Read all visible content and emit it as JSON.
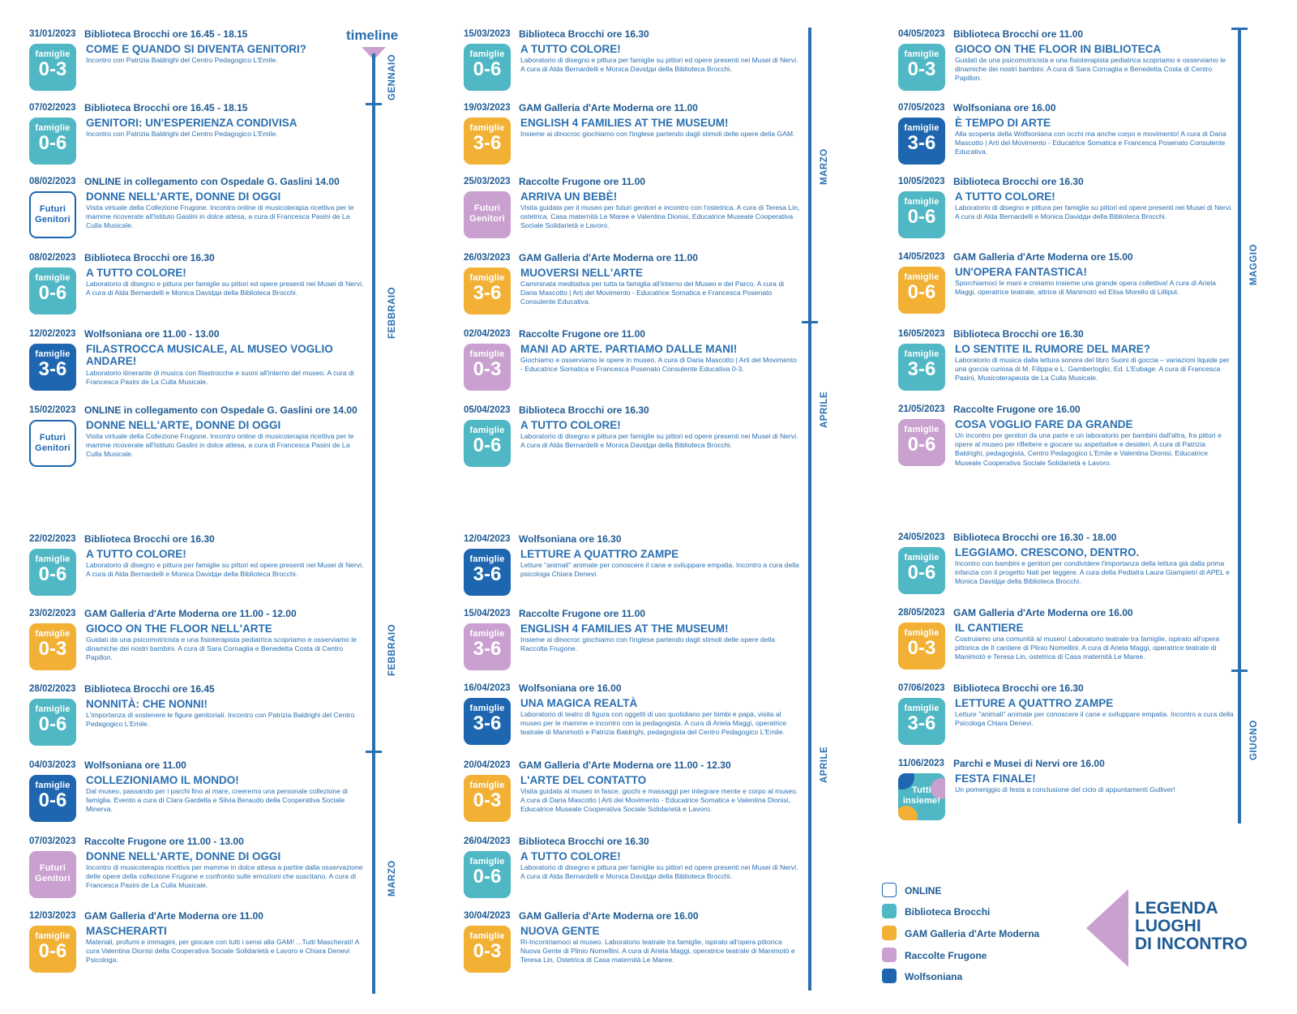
{
  "colors": {
    "biblioteca": "#4fb8c4",
    "gam": "#f2b135",
    "frugone": "#c9a0cf",
    "wolfsoniana": "#1e67b0",
    "online": "#ffffff",
    "text": "#2a6fb0"
  },
  "timeline_label": "timeline",
  "columns": [
    {
      "events": [
        {
          "date": "31/01/2023",
          "venue": "Biblioteca Brocchi ore 16.45 - 18.15",
          "title": "COME E QUANDO SI DIVENTA GENITORI?",
          "desc": "Incontro con Patrizia Baldrighi del Centro Pedagogico L'Emile.",
          "badge": {
            "type": "biblioteca",
            "line1": "famiglie",
            "line2": "0-3"
          }
        },
        {
          "date": "07/02/2023",
          "venue": "Biblioteca Brocchi ore 16.45 - 18.15",
          "title": "GENITORI: UN'ESPERIENZA CONDIVISA",
          "desc": "Incontro con Patrizia Baldrighi del Centro Pedagogico L'Emile.",
          "badge": {
            "type": "biblioteca",
            "line1": "famiglie",
            "line2": "0-6"
          }
        },
        {
          "date": "08/02/2023",
          "venue": "ONLINE in collegamento con Ospedale G. Gaslini 14.00",
          "title": "DONNE NELL'ARTE, DONNE DI OGGI",
          "desc": "Visita virtuale della Collezione Frugone. Incontro online di musicoterapia ricettiva per le mamme ricoverate all'Istituto Gaslini in dolce attesa, a cura di Francesca Pasini de La Culla Musicale.",
          "badge": {
            "type": "online",
            "line1": "Futuri Genitori",
            "line2": ""
          }
        },
        {
          "date": "08/02/2023",
          "venue": "Biblioteca Brocchi ore 16.30",
          "title": "A TUTTO COLORE!",
          "desc": "Laboratorio di disegno e pittura per famiglie su pittori ed opere presenti nei Musei di Nervi. A cura di Alda Bernardelli e Monica Davidди della Biblioteca Brocchi.",
          "badge": {
            "type": "biblioteca",
            "line1": "famiglie",
            "line2": "0-6"
          }
        },
        {
          "date": "12/02/2023",
          "venue": "Wolfsoniana ore 11.00 - 13.00",
          "title": "FILASTROCCA MUSICALE, AL MUSEO VOGLIO ANDARE!",
          "desc": "Laboratorio itinerante di musica con filastrocche e suoni all'interno del museo. A cura di Francesca Pasini de La Culla Musicale.",
          "badge": {
            "type": "wolfsoniana",
            "line1": "famiglie",
            "line2": "3-6"
          }
        },
        {
          "date": "15/02/2023",
          "venue": "ONLINE in collegamento con Ospedale G. Gaslini ore 14.00",
          "title": "DONNE NELL'ARTE, DONNE DI OGGI",
          "desc": "Visita virtuale della Collezione Frugone. Incontro online di musicoterapia ricettiva per le mamme ricoverate all'Istituto Gaslini in dolce attesa, a cura di Francesca Pasini de La Culla Musicale.",
          "badge": {
            "type": "online",
            "line1": "Futuri Genitori",
            "line2": ""
          }
        },
        {
          "date": "22/02/2023",
          "venue": "Biblioteca Brocchi ore 16.30",
          "title": "A TUTTO COLORE!",
          "desc": "Laboratorio di disegno e pittura per famiglie su pittori ed opere presenti nei Musei di Nervi. A cura di Alda Bernardelli e Monica Davidди della Biblioteca Brocchi.",
          "badge": {
            "type": "biblioteca",
            "line1": "famiglie",
            "line2": "0-6"
          }
        },
        {
          "date": "23/02/2023",
          "venue": "GAM Galleria d'Arte Moderna ore 11.00 - 12.00",
          "title": "GIOCO ON THE FLOOR NELL'ARTE",
          "desc": "Guidati da una psicomotricista e una fisioterapista pediatrica scopriamo e osserviamo le dinamiche dei nostri bambini. A cura di Sara Cornaglia e Benedetta Costa di Centro Papillon.",
          "badge": {
            "type": "gam",
            "line1": "famiglie",
            "line2": "0-3"
          }
        },
        {
          "date": "28/02/2023",
          "venue": "Biblioteca Brocchi ore 16.45",
          "title": "NONNITÀ: CHE NONNI!",
          "desc": "L'importanza di sostenere le figure genitoriali. Incontro con Patrizia Baldrighi del Centro Pedagogico L'Emile.",
          "badge": {
            "type": "biblioteca",
            "line1": "famiglie",
            "line2": "0-6"
          }
        },
        {
          "date": "04/03/2023",
          "venue": "Wolfsoniana ore 11.00",
          "title": "COLLEZIONIAMO IL MONDO!",
          "desc": "Dal museo, passando per i parchi fino al mare, creeremo una personale collezione di famiglia. Evento a cura di Clara Gardella e Silvia Beraudo della Cooperativa Sociale Minerva.",
          "badge": {
            "type": "wolfsoniana",
            "line1": "famiglie",
            "line2": "0-6"
          }
        },
        {
          "date": "07/03/2023",
          "venue": "Raccolte Frugone ore 11.00 - 13.00",
          "title": "DONNE NELL'ARTE, DONNE DI OGGI",
          "desc": "Incontro di musicoterapia ricettiva per mamme in dolce attesa a partire dalla osservazione delle opere della collezione Frugone e confronto sulle emozioni che suscitano. A cura di Francesca Pasini de La Culla Musicale.",
          "badge": {
            "type": "frugone",
            "line1": "Futuri Genitori",
            "line2": ""
          }
        },
        {
          "date": "12/03/2023",
          "venue": "GAM Galleria d'Arte Moderna ore 11.00",
          "title": "MASCHERARTI",
          "desc": "Materiali, profumi e immagini, per giocare con tutti i sensi alla GAM! ...Tutti Mascherati! A cura Valentina Dionisi della Cooperativa Sociale Solidarietà e Lavoro e Chiara Denevi Psicologa.",
          "badge": {
            "type": "gam",
            "line1": "famiglie",
            "line2": "0-6"
          }
        }
      ],
      "months": [
        "GENNAIO",
        "FEBBRAIO",
        "FEBBRAIO",
        "MARZO"
      ]
    },
    {
      "events": [
        {
          "date": "15/03/2023",
          "venue": "Biblioteca Brocchi ore 16.30",
          "title": "A TUTTO COLORE!",
          "desc": "Laboratorio di disegno e pittura per famiglie su pittori ed opere presenti nei Musei di Nervi. A cura di Alda Bernardelli e Monica Davidди della Biblioteca Brocchi.",
          "badge": {
            "type": "biblioteca",
            "line1": "famiglie",
            "line2": "0-6"
          }
        },
        {
          "date": "19/03/2023",
          "venue": "GAM Galleria d'Arte Moderna ore 11.00",
          "title": "ENGLISH 4 FAMILIES AT THE MUSEUM!",
          "desc": "Insieme ai dinocroc giochiamo con l'inglese partendo dagli stimoli delle opere della GAM.",
          "badge": {
            "type": "gam",
            "line1": "famiglie",
            "line2": "3-6"
          }
        },
        {
          "date": "25/03/2023",
          "venue": "Raccolte Frugone ore 11.00",
          "title": "ARRIVA UN BEBÈ!",
          "desc": "Visita guidata per il museo per futuri genitori e incontro con l'ostetrica. A cura di Teresa Lin, ostetrica, Casa maternità Le Maree e Valentina Dionisi, Educatrice Museale Cooperativa Sociale Solidarietà e Lavoro.",
          "badge": {
            "type": "frugone",
            "line1": "Futuri Genitori",
            "line2": ""
          }
        },
        {
          "date": "26/03/2023",
          "venue": "GAM Galleria d'Arte Moderna ore 11.00",
          "title": "MUOVERSI NELL'ARTE",
          "desc": "Camminata meditativa per tutta la famiglia all'interno del Museo e del Parco. A cura di Daria Mascotto | Arti del Movimento - Educatrice Somatica e Francesca Posenato Consulente Educativa.",
          "badge": {
            "type": "gam",
            "line1": "famiglie",
            "line2": "3-6"
          }
        },
        {
          "date": "02/04/2023",
          "venue": "Raccolte Frugone ore 11.00",
          "title": "MANI AD ARTE. PARTIAMO DALLE MANI!",
          "desc": "Giochiamo e osserviamo le opere in museo. A cura di Daria Mascotto | Arti del Movimento - Educatrice Somatica e Francesca Posenato Consulente Educativa 0-3.",
          "badge": {
            "type": "frugone",
            "line1": "famiglie",
            "line2": "0-3"
          }
        },
        {
          "date": "05/04/2023",
          "venue": "Biblioteca Brocchi ore 16.30",
          "title": "A TUTTO COLORE!",
          "desc": "Laboratorio di disegno e pittura per famiglie su pittori ed opere presenti nei Musei di Nervi. A cura di Alda Bernardelli e Monica Davidди della Biblioteca Brocchi.",
          "badge": {
            "type": "biblioteca",
            "line1": "famiglie",
            "line2": "0-6"
          }
        },
        {
          "date": "12/04/2023",
          "venue": "Wolfsoniana ore 16.30",
          "title": "LETTURE A QUATTRO ZAMPE",
          "desc": "Letture \"animali\" animate per conoscere il cane e sviluppare empatia. Incontro a cura della psicologa Chiara Denevi.",
          "badge": {
            "type": "wolfsoniana",
            "line1": "famiglie",
            "line2": "3-6"
          }
        },
        {
          "date": "15/04/2023",
          "venue": "Raccolte Frugone ore 11.00",
          "title": "ENGLISH 4 FAMILIES AT THE MUSEUM!",
          "desc": "Insieme ai dinocroc giochiamo con l'inglese partendo dagli stimoli delle opere della Raccolta Frugone.",
          "badge": {
            "type": "frugone",
            "line1": "famiglie",
            "line2": "3-6"
          }
        },
        {
          "date": "16/04/2023",
          "venue": "Wolfsoniana ore 16.00",
          "title": "UNA MAGICA REALTÀ",
          "desc": "Laboratorio di teatro di figura con oggetti di uso quotidiano per bimbi e papà, visita al museo per le mamme e incontro con la pedagogista. A cura di Ariela Maggi, operatrice teatrale di Manimotò e Patrizia Baldrighi, pedagogista del Centro Pedagogico L'Emile.",
          "badge": {
            "type": "wolfsoniana",
            "line1": "famiglie",
            "line2": "3-6"
          }
        },
        {
          "date": "20/04/2023",
          "venue": "GAM Galleria d'Arte Moderna ore 11.00 - 12.30",
          "title": "L'ARTE DEL CONTATTO",
          "desc": "Visita guidata al museo in fasce, giochi e massaggi per integrare mente e corpo al museo. A cura di Daria Mascotto | Arti del Movimento - Educatrice Somatica e Valentina Dionisi, Educatrice Museale Cooperativa Sociale Solidarietà e Lavoro.",
          "badge": {
            "type": "gam",
            "line1": "famiglie",
            "line2": "0-3"
          }
        },
        {
          "date": "26/04/2023",
          "venue": "Biblioteca Brocchi ore 16.30",
          "title": "A TUTTO COLORE!",
          "desc": "Laboratorio di disegno e pittura per famiglie su pittori ed opere presenti nei Musei di Nervi. A cura di Alda Bernardelli e Monica Davidди della Biblioteca Brocchi.",
          "badge": {
            "type": "biblioteca",
            "line1": "famiglie",
            "line2": "0-6"
          }
        },
        {
          "date": "30/04/2023",
          "venue": "GAM Galleria d'Arte Moderna ore 16.00",
          "title": "NUOVA GENTE",
          "desc": "Ri-Incontriamoci al museo. Laboratorio teatrale tra famiglie, ispirato all'opera pittorica Nuova Gente di Plinio Nomellini. A cura di Ariela Maggi, operatrice teatrale di Manimotò e Teresa Lin, Ostetrica di Casa maternità Le Maree.",
          "badge": {
            "type": "gam",
            "line1": "famiglie",
            "line2": "0-3"
          }
        }
      ],
      "months": [
        "MARZO",
        "APRILE",
        "APRILE"
      ]
    },
    {
      "events": [
        {
          "date": "04/05/2023",
          "venue": "Biblioteca Brocchi ore 11.00",
          "title": "GIOCO ON THE FLOOR IN BIBLIOTECA",
          "desc": "Guidati da una psicomotricista e una fisioterapista pediatrica scopriamo e osserviamo le dinamiche dei nostri bambini. A cura di Sara Cornaglia e Benedetta Costa di Centro Papillon.",
          "badge": {
            "type": "biblioteca",
            "line1": "famiglie",
            "line2": "0-3"
          }
        },
        {
          "date": "07/05/2023",
          "venue": "Wolfsoniana ore 16.00",
          "title": "È TEMPO DI ARTE",
          "desc": "Alla scoperta della Wolfsoniana con occhi ma anche corpo e movimento! A cura di Daria Mascotto | Arti del Movimento - Educatrice Somatica e Francesca Posenato Consulente Educativa.",
          "badge": {
            "type": "wolfsoniana",
            "line1": "famiglie",
            "line2": "3-6"
          }
        },
        {
          "date": "10/05/2023",
          "venue": "Biblioteca Brocchi ore 16.30",
          "title": "A TUTTO COLORE!",
          "desc": "Laboratorio di disegno e pittura per famiglie su pittori ed opere presenti nei Musei di Nervi. A cura di Alda Bernardelli e Monica Davidди della Biblioteca Brocchi.",
          "badge": {
            "type": "biblioteca",
            "line1": "famiglie",
            "line2": "0-6"
          }
        },
        {
          "date": "14/05/2023",
          "venue": "GAM Galleria d'Arte Moderna ore 15.00",
          "title": "UN'OPERA FANTASTICA!",
          "desc": "Sporchiamoci le mani e creiamo insieme una grande opera collettiva! A cura di Ariela Maggi, operatrice teatrale, attrice di Manimotò ed Elisa Morello di Lilliput.",
          "badge": {
            "type": "gam",
            "line1": "famiglie",
            "line2": "0-6"
          }
        },
        {
          "date": "16/05/2023",
          "venue": "Biblioteca Brocchi ore 16.30",
          "title": "LO SENTITE IL RUMORE DEL MARE?",
          "desc": "Laboratorio di musica dalla lettura sonora del libro Suoni di goccia – variazioni liquide per una goccia curiosa di M. Filippa e L. Gambertoglio, Ed. L'Eubage. A cura di Francesca Pasini, Musicoterapeuta de La Culla Musicale.",
          "badge": {
            "type": "biblioteca",
            "line1": "famiglie",
            "line2": "3-6"
          }
        },
        {
          "date": "21/05/2023",
          "venue": "Raccolte Frugone ore 16.00",
          "title": "COSA VOGLIO FARE DA GRANDE",
          "desc": "Un incontro per genitori da una parte e un laboratorio per bambini dall'altra, fra pittori e opere al museo per riflettere e giocare su aspettative e desideri. A cura di Patrizia Baldrighi, pedagogista, Centro Pedagogico L'Emile e Valentina Dionisi, Educatrice Museale Cooperativa Sociale Solidarietà e Lavoro.",
          "badge": {
            "type": "frugone",
            "line1": "famiglie",
            "line2": "0-6"
          }
        },
        {
          "date": "24/05/2023",
          "venue": "Biblioteca Brocchi ore 16.30 - 18.00",
          "title": "LEGGIAMO. CRESCONO, DENTRO.",
          "desc": "Incontro con bambini e genitori per condividere l'importanza della lettura già dalla prima infanzia con il progetto Nati per leggere. A cura della Pediatra Laura Giampietri di APEL e Monica Davidди della Biblioteca Brocchi.",
          "badge": {
            "type": "biblioteca",
            "line1": "famiglie",
            "line2": "0-6"
          }
        },
        {
          "date": "28/05/2023",
          "venue": "GAM Galleria d'Arte Moderna ore 16.00",
          "title": "IL CANTIERE",
          "desc": "Costruiamo una comunità al museo! Laboratorio teatrale tra famiglie, ispirato all'opera pittorica de Il cantiere di Plinio Nomellini. A cura di Ariela Maggi, operatrice teatrale di Manimotò e Teresa Lin, ostetrica di Casa maternità Le Maree.",
          "badge": {
            "type": "gam",
            "line1": "famiglie",
            "line2": "0-3"
          }
        },
        {
          "date": "07/06/2023",
          "venue": "Biblioteca Brocchi ore 16.30",
          "title": "LETTURE A QUATTRO ZAMPE",
          "desc": "Letture \"animali\" animate per conoscere il cane e sviluppare empatia. Incontro a cura della Psicologa Chiara Denevi.",
          "badge": {
            "type": "biblioteca",
            "line1": "famiglie",
            "line2": "3-6"
          }
        },
        {
          "date": "11/06/2023",
          "venue": "Parchi e Musei di Nervi ore 16.00",
          "title": "FESTA FINALE!",
          "desc": "Un pomeriggio di festa a conclusione del ciclo di appuntamenti Gulliver!",
          "badge": {
            "type": "tutti",
            "line1": "Tutti insieme!",
            "line2": ""
          }
        }
      ],
      "months": [
        "MAGGIO",
        "GIUGNO"
      ]
    }
  ],
  "legend": {
    "title_lines": [
      "LEGENDA",
      "LUOGHI",
      "DI INCONTRO"
    ],
    "items": [
      {
        "label": "ONLINE",
        "type": "online"
      },
      {
        "label": "Biblioteca Brocchi",
        "type": "biblioteca"
      },
      {
        "label": "GAM Galleria d'Arte Moderna",
        "type": "gam"
      },
      {
        "label": "Raccolte Frugone",
        "type": "frugone"
      },
      {
        "label": "Wolfsoniana",
        "type": "wolfsoniana"
      }
    ]
  }
}
